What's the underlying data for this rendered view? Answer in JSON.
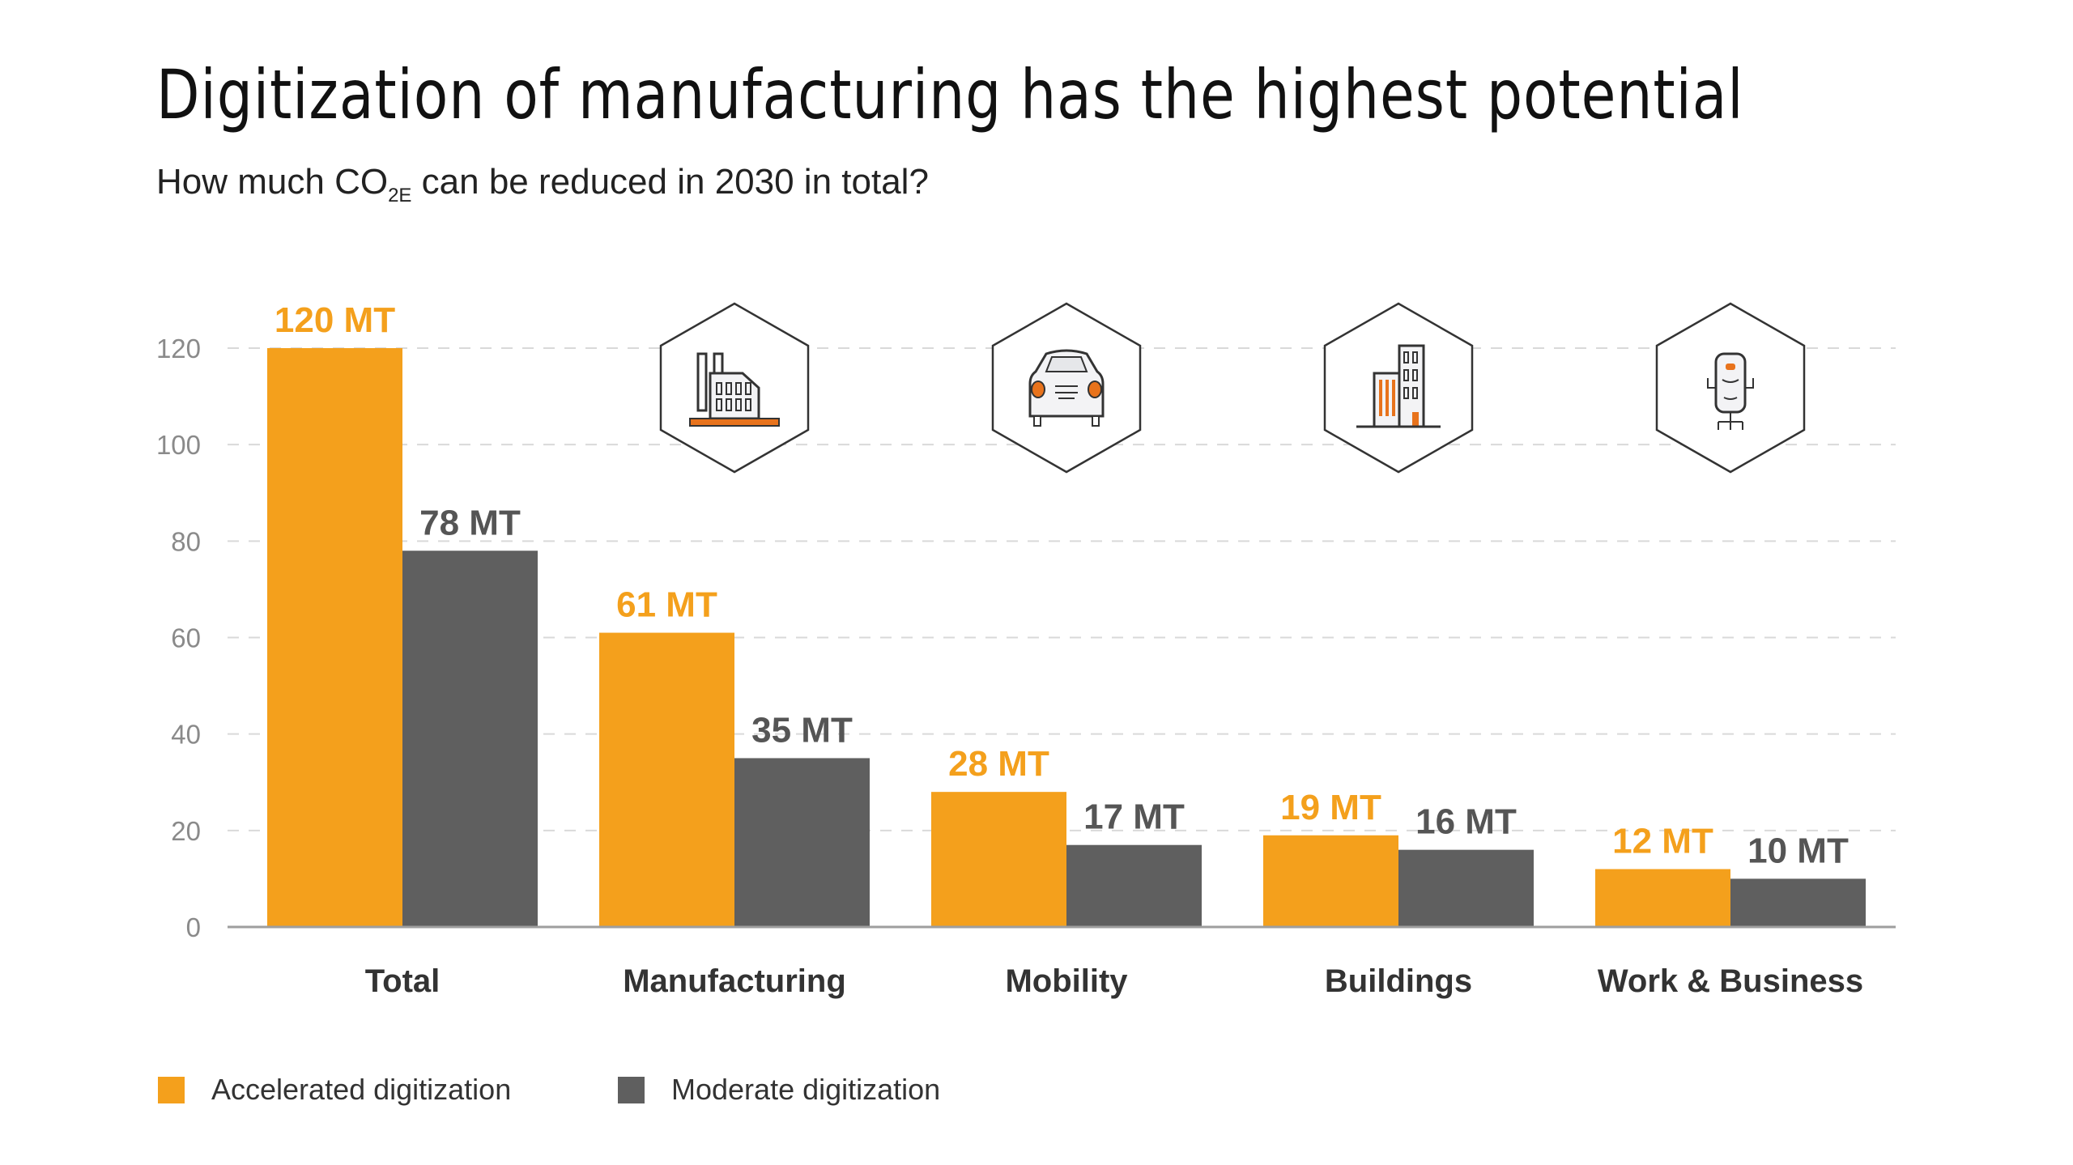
{
  "title": "Digitization of manufacturing has the highest potential",
  "subtitle": {
    "prefix": "How much CO",
    "subscript": "2E",
    "suffix": " can be reduced in 2030 in total?"
  },
  "colors": {
    "accelerated": "#F4A01C",
    "moderate": "#5F5F5F",
    "grid": "#D9D9D9",
    "axis": "#9E9E9E"
  },
  "chart_data": {
    "type": "bar",
    "title": "Digitization of manufacturing has the highest potential",
    "categories": [
      "Total",
      "Manufacturing",
      "Mobility",
      "Buildings",
      "Work & Business"
    ],
    "category_icons": [
      null,
      "factory-icon",
      "car-icon",
      "office-building-icon",
      "office-chair-icon"
    ],
    "series": [
      {
        "name": "Accelerated digitization",
        "values": [
          120,
          61,
          28,
          19,
          12
        ],
        "labels": [
          "120 MT",
          "61 MT",
          "28 MT",
          "19 MT",
          "12 MT"
        ]
      },
      {
        "name": "Moderate digitization",
        "values": [
          78,
          35,
          17,
          16,
          10
        ],
        "labels": [
          "78 MT",
          "35 MT",
          "17 MT",
          "16 MT",
          "10 MT"
        ]
      }
    ],
    "yticks": [
      "0",
      "20",
      "40",
      "60",
      "80",
      "100",
      "120"
    ],
    "ylim": [
      0,
      120
    ],
    "grid": true,
    "grid_style": "dashed",
    "legend_placement": "bottom-left"
  }
}
